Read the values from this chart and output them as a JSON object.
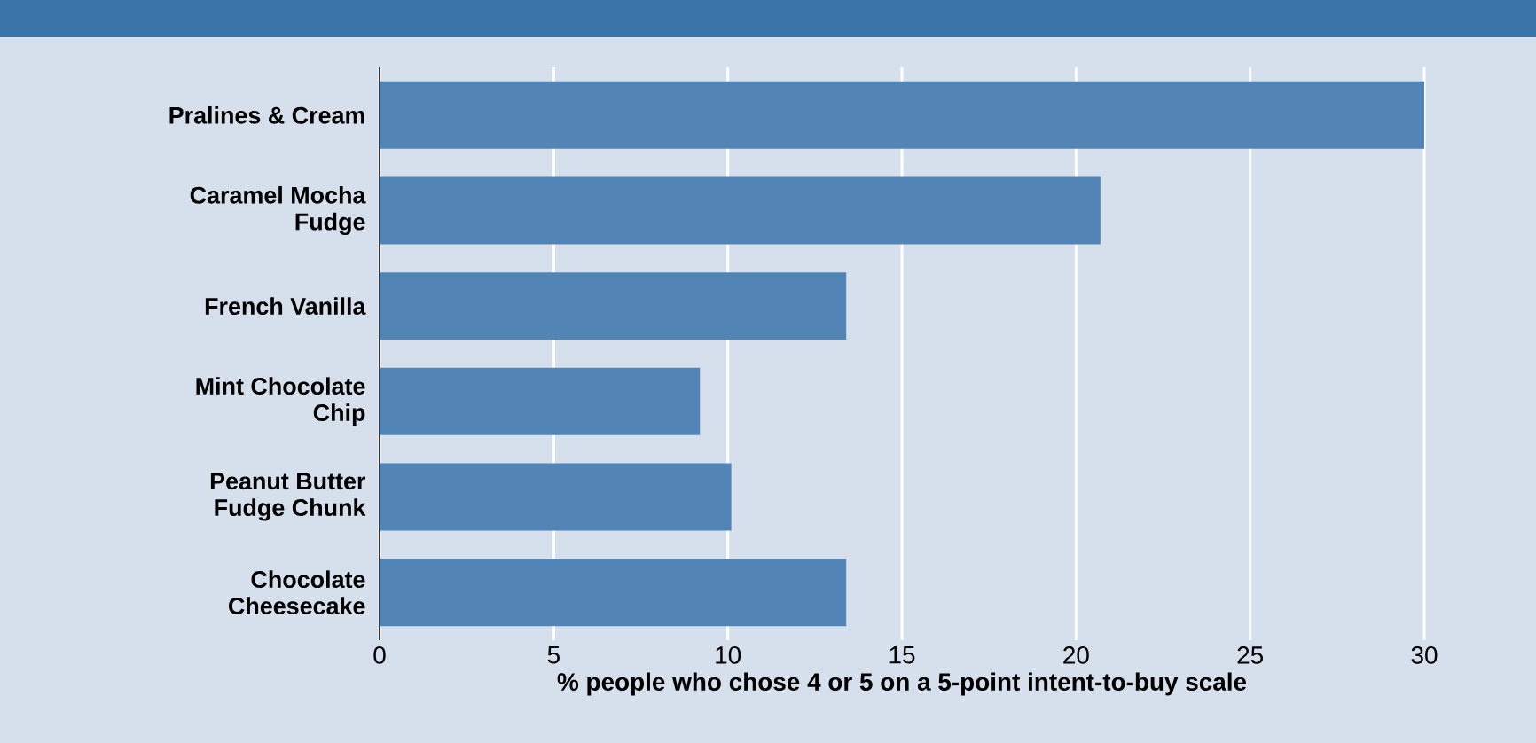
{
  "chart_data": {
    "type": "bar",
    "orientation": "horizontal",
    "categories": [
      "Pralines & Cream",
      "Caramel Mocha Fudge",
      "French Vanilla",
      "Mint Chocolate Chip",
      "Peanut Butter Fudge Chunk",
      "Chocolate Cheesecake"
    ],
    "values": [
      30.0,
      20.7,
      13.4,
      9.2,
      10.1,
      13.4
    ],
    "color": "#5384b6",
    "xlim": [
      0,
      30
    ],
    "xticks": [
      0,
      5,
      10,
      15,
      20,
      25,
      30
    ],
    "xlabel": "% people who chose 4 or 5 on a 5-point intent-to-buy scale",
    "grid": "x"
  }
}
